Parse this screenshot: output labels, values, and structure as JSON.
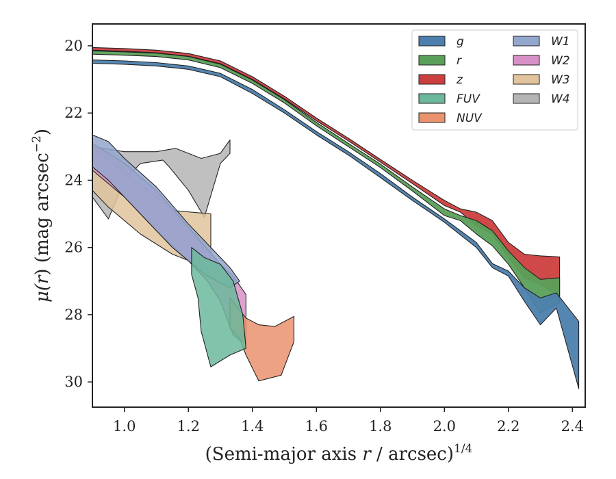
{
  "chart_data": {
    "type": "area",
    "xlabel": "(Semi-major axis r / arcsec)",
    "xlabel_parts": {
      "pre": "(Semi-major axis ",
      "var": "r",
      "post": " / arcsec)",
      "sup": "1/4"
    },
    "ylabel": "μ(r) (mag arcsec⁻²)",
    "ylabel_parts": {
      "mu": "μ(",
      "var": "r",
      "mid": ") (mag arcsec",
      "sup": "−2",
      "end": ")"
    },
    "xlim": [
      0.9,
      2.44
    ],
    "ylim": [
      30.75,
      19.35
    ],
    "y_inverted": true,
    "xticks": [
      1.0,
      1.2,
      1.4,
      1.6,
      1.8,
      2.0,
      2.2,
      2.4
    ],
    "xtick_labels": [
      "1.0",
      "1.2",
      "1.4",
      "1.6",
      "1.8",
      "2.0",
      "2.2",
      "2.4"
    ],
    "yticks": [
      20,
      22,
      24,
      26,
      28,
      30
    ],
    "ytick_labels": [
      "20",
      "22",
      "24",
      "26",
      "28",
      "30"
    ],
    "grid": false,
    "legend": {
      "placement": "top-right",
      "columns": 2
    },
    "series": [
      {
        "name": "g",
        "color": "#4c7fad",
        "upper": [
          [
            0.9,
            20.42
          ],
          [
            1.0,
            20.45
          ],
          [
            1.1,
            20.5
          ],
          [
            1.2,
            20.6
          ],
          [
            1.3,
            20.82
          ],
          [
            1.4,
            21.3
          ],
          [
            1.5,
            21.9
          ],
          [
            1.6,
            22.55
          ],
          [
            1.7,
            23.15
          ],
          [
            1.8,
            23.8
          ],
          [
            1.9,
            24.5
          ],
          [
            2.0,
            25.15
          ],
          [
            2.1,
            25.85
          ],
          [
            2.15,
            26.48
          ],
          [
            2.2,
            26.7
          ],
          [
            2.25,
            27.2
          ],
          [
            2.3,
            27.5
          ],
          [
            2.35,
            27.35
          ],
          [
            2.42,
            28.2
          ]
        ],
        "lower": [
          [
            0.9,
            20.52
          ],
          [
            1.0,
            20.55
          ],
          [
            1.1,
            20.6
          ],
          [
            1.2,
            20.7
          ],
          [
            1.3,
            20.92
          ],
          [
            1.4,
            21.42
          ],
          [
            1.5,
            22.0
          ],
          [
            1.6,
            22.65
          ],
          [
            1.7,
            23.25
          ],
          [
            1.8,
            23.92
          ],
          [
            1.9,
            24.6
          ],
          [
            2.0,
            25.25
          ],
          [
            2.1,
            26.0
          ],
          [
            2.15,
            26.6
          ],
          [
            2.2,
            26.85
          ],
          [
            2.25,
            27.6
          ],
          [
            2.3,
            28.3
          ],
          [
            2.35,
            27.8
          ],
          [
            2.42,
            30.2
          ]
        ]
      },
      {
        "name": "r",
        "color": "#5aa05a",
        "upper": [
          [
            0.9,
            20.15
          ],
          [
            1.0,
            20.18
          ],
          [
            1.1,
            20.22
          ],
          [
            1.2,
            20.32
          ],
          [
            1.3,
            20.55
          ],
          [
            1.4,
            21.02
          ],
          [
            1.5,
            21.6
          ],
          [
            1.6,
            22.28
          ],
          [
            1.7,
            22.9
          ],
          [
            1.8,
            23.52
          ],
          [
            1.9,
            24.2
          ],
          [
            2.0,
            24.85
          ],
          [
            2.05,
            25.05
          ],
          [
            2.1,
            25.2
          ],
          [
            2.15,
            25.5
          ],
          [
            2.2,
            26.1
          ],
          [
            2.25,
            26.6
          ],
          [
            2.3,
            26.95
          ],
          [
            2.36,
            26.9
          ]
        ],
        "lower": [
          [
            0.9,
            20.25
          ],
          [
            1.0,
            20.28
          ],
          [
            1.1,
            20.32
          ],
          [
            1.2,
            20.42
          ],
          [
            1.3,
            20.65
          ],
          [
            1.4,
            21.12
          ],
          [
            1.5,
            21.7
          ],
          [
            1.6,
            22.38
          ],
          [
            1.7,
            23.0
          ],
          [
            1.8,
            23.62
          ],
          [
            1.9,
            24.32
          ],
          [
            2.0,
            25.05
          ],
          [
            2.05,
            25.2
          ],
          [
            2.1,
            25.6
          ],
          [
            2.15,
            25.95
          ],
          [
            2.2,
            26.5
          ],
          [
            2.25,
            27.2
          ],
          [
            2.3,
            27.95
          ],
          [
            2.36,
            27.65
          ]
        ]
      },
      {
        "name": "z",
        "color": "#cc3f3f",
        "upper": [
          [
            0.9,
            20.05
          ],
          [
            1.0,
            20.08
          ],
          [
            1.1,
            20.13
          ],
          [
            1.2,
            20.23
          ],
          [
            1.3,
            20.45
          ],
          [
            1.4,
            20.92
          ],
          [
            1.5,
            21.5
          ],
          [
            1.6,
            22.15
          ],
          [
            1.7,
            22.75
          ],
          [
            1.8,
            23.38
          ],
          [
            1.9,
            24.0
          ],
          [
            2.0,
            24.6
          ],
          [
            2.05,
            24.85
          ],
          [
            2.1,
            24.95
          ],
          [
            2.15,
            25.2
          ],
          [
            2.2,
            25.85
          ],
          [
            2.25,
            26.2
          ],
          [
            2.3,
            26.25
          ],
          [
            2.36,
            26.28
          ]
        ],
        "lower": [
          [
            0.9,
            20.13
          ],
          [
            1.0,
            20.16
          ],
          [
            1.1,
            20.21
          ],
          [
            1.2,
            20.31
          ],
          [
            1.3,
            20.53
          ],
          [
            1.4,
            21.0
          ],
          [
            1.5,
            21.58
          ],
          [
            1.6,
            22.23
          ],
          [
            1.7,
            22.83
          ],
          [
            1.8,
            23.46
          ],
          [
            1.9,
            24.1
          ],
          [
            2.0,
            24.75
          ],
          [
            2.05,
            24.95
          ],
          [
            2.1,
            25.35
          ],
          [
            2.15,
            25.6
          ],
          [
            2.2,
            26.3
          ],
          [
            2.25,
            26.9
          ],
          [
            2.3,
            27.1
          ],
          [
            2.36,
            27.45
          ]
        ]
      },
      {
        "name": "FUV",
        "color": "#6cb89c",
        "polygon": [
          [
            1.21,
            26.0
          ],
          [
            1.25,
            26.3
          ],
          [
            1.3,
            26.5
          ],
          [
            1.34,
            27.0
          ],
          [
            1.37,
            28.0
          ],
          [
            1.38,
            29.0
          ],
          [
            1.33,
            29.2
          ],
          [
            1.27,
            29.55
          ],
          [
            1.24,
            28.5
          ],
          [
            1.23,
            27.5
          ],
          [
            1.21,
            26.8
          ]
        ]
      },
      {
        "name": "NUV",
        "color": "#e9926d",
        "polygon": [
          [
            1.33,
            27.5
          ],
          [
            1.38,
            28.1
          ],
          [
            1.42,
            28.3
          ],
          [
            1.47,
            28.35
          ],
          [
            1.53,
            28.05
          ],
          [
            1.53,
            28.8
          ],
          [
            1.49,
            29.8
          ],
          [
            1.42,
            29.97
          ],
          [
            1.38,
            29.2
          ],
          [
            1.36,
            28.7
          ],
          [
            1.33,
            28.4
          ]
        ]
      },
      {
        "name": "W1",
        "color": "#93a6cc",
        "polygon": [
          [
            0.9,
            22.65
          ],
          [
            0.95,
            22.85
          ],
          [
            1.0,
            23.35
          ],
          [
            1.1,
            24.2
          ],
          [
            1.2,
            25.3
          ],
          [
            1.3,
            26.3
          ],
          [
            1.33,
            26.6
          ],
          [
            1.36,
            27.0
          ],
          [
            1.33,
            27.2
          ],
          [
            1.25,
            26.8
          ],
          [
            1.15,
            26.0
          ],
          [
            1.05,
            25.0
          ],
          [
            0.95,
            24.0
          ],
          [
            0.9,
            23.6
          ]
        ]
      },
      {
        "name": "W2",
        "color": "#d891c8",
        "polygon": [
          [
            0.9,
            22.9
          ],
          [
            1.0,
            23.5
          ],
          [
            1.1,
            24.3
          ],
          [
            1.2,
            25.4
          ],
          [
            1.3,
            26.5
          ],
          [
            1.34,
            26.85
          ],
          [
            1.38,
            27.4
          ],
          [
            1.38,
            28.9
          ],
          [
            1.34,
            28.6
          ],
          [
            1.3,
            27.6
          ],
          [
            1.26,
            27.0
          ],
          [
            1.2,
            26.4
          ],
          [
            1.1,
            25.5
          ],
          [
            1.0,
            24.5
          ],
          [
            0.9,
            23.7
          ]
        ]
      },
      {
        "name": "W3",
        "color": "#e1c39c",
        "polygon": [
          [
            0.9,
            23.0
          ],
          [
            1.0,
            23.8
          ],
          [
            1.1,
            24.5
          ],
          [
            1.15,
            24.9
          ],
          [
            1.27,
            25.0
          ],
          [
            1.27,
            26.65
          ],
          [
            1.15,
            26.2
          ],
          [
            1.05,
            25.6
          ],
          [
            0.95,
            24.8
          ],
          [
            0.9,
            24.3
          ]
        ]
      },
      {
        "name": "W4",
        "color": "#b5b5b5",
        "polygon": [
          [
            0.9,
            23.0
          ],
          [
            1.0,
            23.15
          ],
          [
            1.1,
            23.15
          ],
          [
            1.16,
            23.05
          ],
          [
            1.24,
            23.35
          ],
          [
            1.3,
            23.2
          ],
          [
            1.33,
            22.8
          ],
          [
            1.33,
            23.2
          ],
          [
            1.3,
            23.5
          ],
          [
            1.25,
            25.1
          ],
          [
            1.2,
            24.3
          ],
          [
            1.14,
            23.6
          ],
          [
            1.12,
            23.4
          ],
          [
            1.05,
            23.5
          ],
          [
            1.0,
            24.0
          ],
          [
            0.95,
            25.15
          ],
          [
            0.9,
            24.5
          ]
        ]
      }
    ]
  }
}
